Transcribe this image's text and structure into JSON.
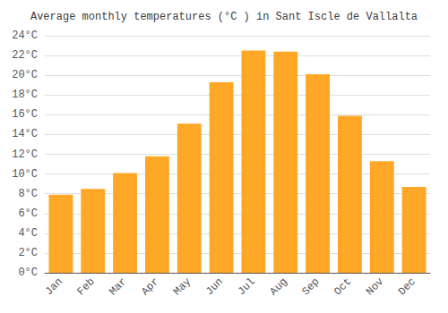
{
  "chart_data": {
    "type": "bar",
    "title": "Average monthly temperatures (°C ) in Sant Iscle de Vallalta",
    "categories": [
      "Jan",
      "Feb",
      "Mar",
      "Apr",
      "May",
      "Jun",
      "Jul",
      "Aug",
      "Sep",
      "Oct",
      "Nov",
      "Dec"
    ],
    "values": [
      7.9,
      8.5,
      10.1,
      11.8,
      15.1,
      19.3,
      22.5,
      22.4,
      20.1,
      15.9,
      11.3,
      8.7
    ],
    "color": "#FFA726",
    "ylim": [
      0,
      24
    ],
    "yticks": [
      {
        "value": 0,
        "label": "0°C"
      },
      {
        "value": 2,
        "label": "2°C"
      },
      {
        "value": 4,
        "label": "4°C"
      },
      {
        "value": 6,
        "label": "6°C"
      },
      {
        "value": 8,
        "label": "8°C"
      },
      {
        "value": 10,
        "label": "10°C"
      },
      {
        "value": 12,
        "label": "12°C"
      },
      {
        "value": 14,
        "label": "14°C"
      },
      {
        "value": 16,
        "label": "16°C"
      },
      {
        "value": 18,
        "label": "18°C"
      },
      {
        "value": 20,
        "label": "20°C"
      },
      {
        "value": 22,
        "label": "22°C"
      },
      {
        "value": 24,
        "label": "24°C"
      }
    ],
    "grid": true
  }
}
